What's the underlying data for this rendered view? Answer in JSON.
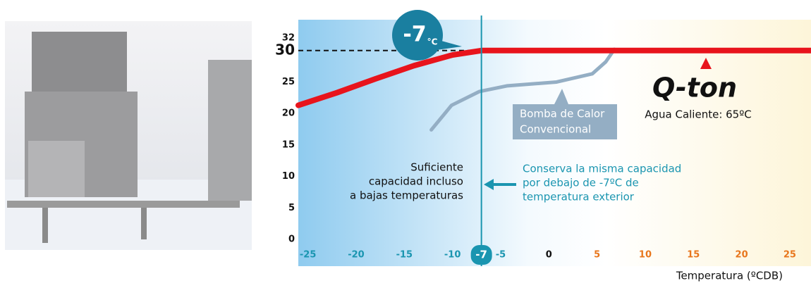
{
  "chart_data": {
    "type": "line",
    "xlim": [
      -26,
      27.2
    ],
    "ylim": [
      -0.9,
      34.9
    ],
    "xticks": [
      -25,
      -20,
      -15,
      -10,
      -5,
      0,
      5,
      10,
      15,
      20,
      25
    ],
    "yticks": [
      0,
      5,
      10,
      15,
      20,
      25,
      30,
      32
    ],
    "highlight_ytick": 30,
    "vline": -7,
    "vline_color": "#1a95b0",
    "callout_unit": "°C",
    "x_label": "Temperatura (ºCDB)",
    "series": [
      {
        "name": "Q-ton",
        "color": "#e8141c",
        "x": [
          -26,
          -22,
          -18,
          -14,
          -10,
          -7,
          27.2
        ],
        "values": [
          21.3,
          23.3,
          25.5,
          27.6,
          29.3,
          30,
          30
        ]
      },
      {
        "color": "#94aec4",
        "x": [
          -12.2,
          -10.1,
          -7.2,
          -4.3,
          0.8,
          4.5,
          5.9,
          6.8
        ],
        "values": [
          17.4,
          21.3,
          23.5,
          24.4,
          25,
          26.3,
          28.2,
          30.2
        ]
      }
    ],
    "annotations": {
      "qton_sub": "Agua Caliente: 65ºC",
      "conventional": [
        "Bomba de Calor",
        "Convencional"
      ],
      "left_note": [
        "Suficiente",
        "capacidad incluso",
        "a bajas temperaturas"
      ],
      "right_note": [
        "Conserva la misma capacidad",
        "por debajo de -7ºC de",
        "temperatura exterior"
      ]
    }
  }
}
